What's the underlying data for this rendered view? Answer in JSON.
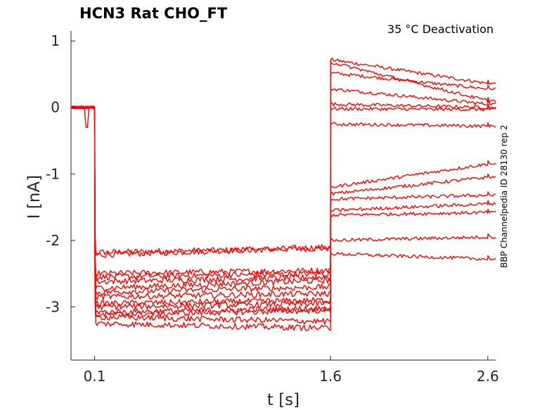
{
  "chart_data": {
    "type": "line",
    "title": "HCN3  Rat  CHO_FT",
    "annotation": "35 °C  Deactivation",
    "side_label": "BBP Channelpedia ID 28130 rep 2",
    "xlabel": "t [s]",
    "ylabel": "I [nA]",
    "xlim": [
      -0.05,
      2.65
    ],
    "ylim": [
      -3.8,
      1.15
    ],
    "xticks": [
      0.1,
      1.6,
      2.6
    ],
    "xtick_labels": [
      "0.1",
      "1.6",
      "2.6"
    ],
    "yticks": [
      1,
      0,
      -1,
      -2,
      -3
    ],
    "ytick_labels": [
      "1",
      "0",
      "-1",
      "-2",
      "-3"
    ],
    "grid": false,
    "line_color": "#ff0000",
    "phases_s": [
      0.1,
      1.6,
      2.6
    ],
    "series": [
      {
        "values": [
          0.0,
          -2.18,
          -2.12,
          0.72,
          0.36
        ]
      },
      {
        "values": [
          0.0,
          -2.22,
          -2.1,
          0.52,
          0.28
        ]
      },
      {
        "values": [
          0.0,
          -2.5,
          -2.45,
          0.28,
          0.05
        ]
      },
      {
        "values": [
          0.0,
          -2.55,
          -2.5,
          0.05,
          0.0
        ]
      },
      {
        "values": [
          0.0,
          -2.62,
          -2.55,
          -0.02,
          -0.03
        ]
      },
      {
        "values": [
          0.0,
          -2.72,
          -2.6,
          -0.25,
          -0.28
        ]
      },
      {
        "values": [
          0.0,
          -2.78,
          -2.7,
          -1.2,
          -0.85
        ]
      },
      {
        "values": [
          0.0,
          -2.85,
          -2.8,
          -1.3,
          -1.05
        ]
      },
      {
        "values": [
          0.0,
          -2.95,
          -2.9,
          -1.38,
          -1.32
        ]
      },
      {
        "values": [
          0.0,
          -3.0,
          -2.95,
          -1.62,
          -1.58
        ]
      },
      {
        "values": [
          0.0,
          -3.08,
          -3.02,
          -2.0,
          -1.95
        ]
      },
      {
        "values": [
          0.0,
          -3.12,
          -3.05,
          -2.2,
          -2.28
        ]
      },
      {
        "values": [
          0.0,
          -3.15,
          -3.22,
          -1.55,
          -1.45
        ]
      },
      {
        "values": [
          0.0,
          -3.25,
          -3.32,
          0.68,
          0.1
        ]
      }
    ]
  }
}
